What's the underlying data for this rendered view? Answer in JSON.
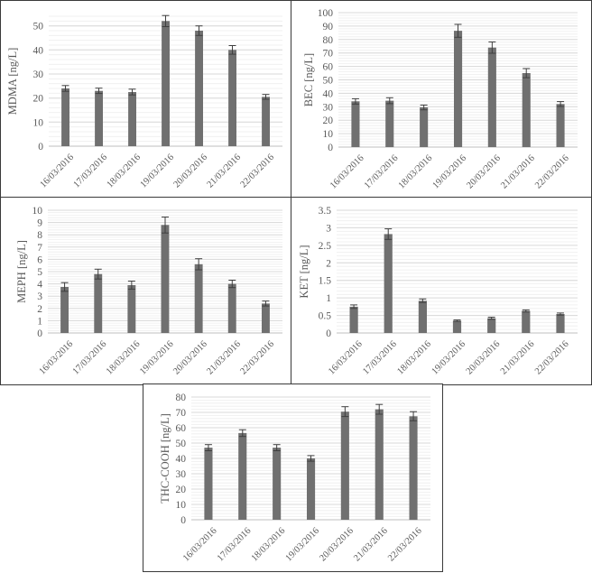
{
  "figure": {
    "bar_color": "#707070",
    "errorbar_color": "#3f3f3f",
    "grid_major_color": "#d9d9d9",
    "grid_minor_color": "#eeeeee",
    "border_color": "#3a3a3a"
  },
  "chart_data": [
    {
      "id": "mdma",
      "type": "bar",
      "title": "",
      "xlabel": "",
      "ylabel": "MDMA [ng/L]",
      "categories": [
        "16/03/2016",
        "17/03/2016",
        "18/03/2016",
        "19/03/2016",
        "20/03/2016",
        "21/03/2016",
        "22/03/2016"
      ],
      "values": [
        24,
        23,
        22.5,
        52,
        48,
        40,
        20.5
      ],
      "errors": [
        1.2,
        1.1,
        1.2,
        2.3,
        2.0,
        1.8,
        1.0
      ],
      "ylim": [
        0,
        54
      ],
      "yticks": [
        0,
        10,
        20,
        30,
        40,
        50
      ],
      "minor_step": 2,
      "grid": true,
      "legend": "none"
    },
    {
      "id": "bec",
      "type": "bar",
      "title": "",
      "xlabel": "",
      "ylabel": "BEC [ng/L]",
      "categories": [
        "16/03/2016",
        "17/03/2016",
        "18/03/2016",
        "19/03/2016",
        "20/03/2016",
        "21/03/2016",
        "22/03/2016"
      ],
      "values": [
        34,
        34.5,
        29.5,
        86.5,
        74,
        55,
        32
      ],
      "errors": [
        2.0,
        2.2,
        1.8,
        4.8,
        4.2,
        3.4,
        1.8
      ],
      "ylim": [
        0,
        100
      ],
      "yticks": [
        0,
        10,
        20,
        30,
        40,
        50,
        60,
        70,
        80,
        90,
        100
      ],
      "minor_step": 2,
      "grid": true,
      "legend": "none"
    },
    {
      "id": "meph",
      "type": "bar",
      "title": "",
      "xlabel": "",
      "ylabel": "MEPH [ng/L]",
      "categories": [
        "16/03/2016",
        "17/03/2016",
        "18/03/2016",
        "19/03/2016",
        "20/03/2016",
        "21/03/2016",
        "22/03/2016"
      ],
      "values": [
        3.75,
        4.8,
        3.9,
        8.8,
        5.6,
        4.0,
        2.4
      ],
      "errors": [
        0.35,
        0.4,
        0.33,
        0.65,
        0.45,
        0.3,
        0.2
      ],
      "ylim": [
        0,
        10
      ],
      "yticks": [
        0,
        1,
        2,
        3,
        4,
        5,
        6,
        7,
        8,
        9,
        10
      ],
      "minor_step": 0.2,
      "grid": true,
      "legend": "none"
    },
    {
      "id": "ket",
      "type": "bar",
      "title": "",
      "xlabel": "",
      "ylabel": "KET [ng/L]",
      "categories": [
        "16/03/2016",
        "17/03/2016",
        "18/03/2016",
        "19/03/2016",
        "20/03/2016",
        "21/03/2016",
        "22/03/2016"
      ],
      "values": [
        0.75,
        2.82,
        0.92,
        0.35,
        0.42,
        0.63,
        0.54
      ],
      "errors": [
        0.05,
        0.15,
        0.05,
        0.02,
        0.03,
        0.03,
        0.03
      ],
      "ylim": [
        0,
        3.5
      ],
      "yticks": [
        0,
        0.5,
        1,
        1.5,
        2,
        2.5,
        3,
        3.5
      ],
      "yticklabels": [
        "0",
        "0.5",
        "1",
        "1.5",
        "2",
        "2.5",
        "3",
        "3.5"
      ],
      "minor_step": 0.1,
      "grid": true,
      "legend": "none"
    },
    {
      "id": "thc",
      "type": "bar",
      "title": "",
      "xlabel": "",
      "ylabel": "THC-COOH  [ng/L]",
      "categories": [
        "16/03/2016",
        "17/03/2016",
        "18/03/2016",
        "19/03/2016",
        "20/03/2016",
        "21/03/2016",
        "22/03/2016"
      ],
      "values": [
        47,
        56.5,
        47,
        40,
        70.5,
        72,
        67.5
      ],
      "errors": [
        2.0,
        2.2,
        2.0,
        1.8,
        3.2,
        3.2,
        3.0
      ],
      "ylim": [
        0,
        80
      ],
      "yticks": [
        0,
        10,
        20,
        30,
        40,
        50,
        60,
        70,
        80
      ],
      "minor_step": 2,
      "grid": true,
      "legend": "none"
    }
  ]
}
